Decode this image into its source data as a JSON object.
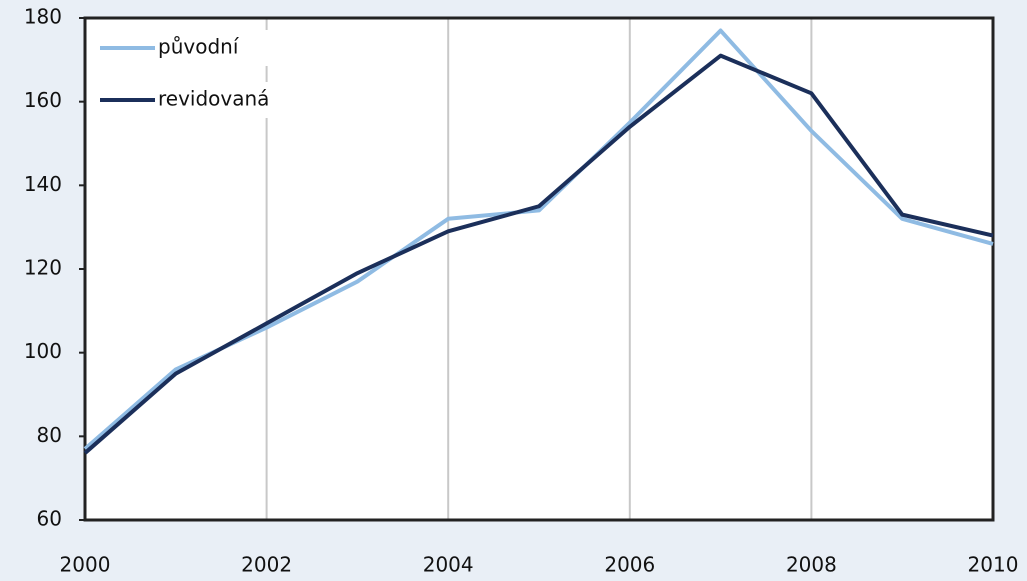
{
  "chart_data": {
    "type": "line",
    "x": [
      2000,
      2001,
      2002,
      2003,
      2004,
      2005,
      2006,
      2007,
      2008,
      2009,
      2010
    ],
    "series": [
      {
        "name": "původní",
        "color": "#8fbbe3",
        "values": [
          77,
          96,
          106,
          117,
          132,
          134,
          155,
          177,
          153,
          132,
          126
        ]
      },
      {
        "name": "revidovaná",
        "color": "#1b2f5a",
        "values": [
          76,
          95,
          107,
          119,
          129,
          135,
          154,
          171,
          162,
          133,
          128
        ]
      }
    ],
    "xlim": [
      2000,
      2010
    ],
    "xticks": [
      2000,
      2002,
      2004,
      2006,
      2008,
      2010
    ],
    "ylim": [
      60,
      180
    ],
    "yticks": [
      60,
      80,
      100,
      120,
      140,
      160,
      180
    ],
    "grid": "x",
    "legend": "upper left"
  }
}
